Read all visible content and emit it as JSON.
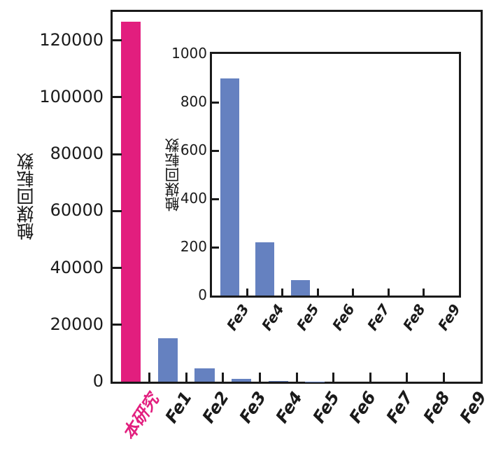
{
  "figure": {
    "background_color": "#ffffff",
    "axis_color": "#1a1a1a",
    "accent_pink": "#E21E7E",
    "bar_blue": "#6581C0"
  },
  "chart_data": [
    {
      "id": "main",
      "type": "bar",
      "title": "",
      "xlabel": "",
      "ylabel": "触媒回転数",
      "categories": [
        "本研究",
        "Fe1",
        "Fe2",
        "Fe3",
        "Fe4",
        "Fe5",
        "Fe6",
        "Fe7",
        "Fe8",
        "Fe9"
      ],
      "values": [
        126500,
        15300,
        4800,
        900,
        220,
        65,
        0,
        0,
        0,
        0
      ],
      "bar_colors": [
        "#E21E7E",
        "#6581C0",
        "#6581C0",
        "#6581C0",
        "#6581C0",
        "#6581C0",
        "#6581C0",
        "#6581C0",
        "#6581C0",
        "#6581C0"
      ],
      "category_label_colors": [
        "#E21E7E",
        "#1a1a1a",
        "#1a1a1a",
        "#1a1a1a",
        "#1a1a1a",
        "#1a1a1a",
        "#1a1a1a",
        "#1a1a1a",
        "#1a1a1a",
        "#1a1a1a"
      ],
      "ylim": [
        0,
        130000
      ],
      "ytick_values": [
        0,
        20000,
        40000,
        60000,
        80000,
        100000,
        120000
      ],
      "ytick_labels": [
        "0",
        "20000",
        "40000",
        "60000",
        "80000",
        "100000",
        "120000"
      ],
      "grid": false,
      "legend": null
    },
    {
      "id": "inset",
      "type": "bar",
      "title": "",
      "xlabel": "",
      "ylabel": "触媒回転数",
      "categories": [
        "Fe3",
        "Fe4",
        "Fe5",
        "Fe6",
        "Fe7",
        "Fe8",
        "Fe9"
      ],
      "values": [
        900,
        220,
        65,
        0,
        0,
        0,
        0
      ],
      "bar_colors": [
        "#6581C0",
        "#6581C0",
        "#6581C0",
        "#6581C0",
        "#6581C0",
        "#6581C0",
        "#6581C0"
      ],
      "category_label_colors": [
        "#1a1a1a",
        "#1a1a1a",
        "#1a1a1a",
        "#1a1a1a",
        "#1a1a1a",
        "#1a1a1a",
        "#1a1a1a"
      ],
      "ylim": [
        0,
        1000
      ],
      "ytick_values": [
        0,
        200,
        400,
        600,
        800,
        1000
      ],
      "ytick_labels": [
        "0",
        "200",
        "400",
        "600",
        "800",
        "1000"
      ],
      "grid": false,
      "legend": null
    }
  ]
}
